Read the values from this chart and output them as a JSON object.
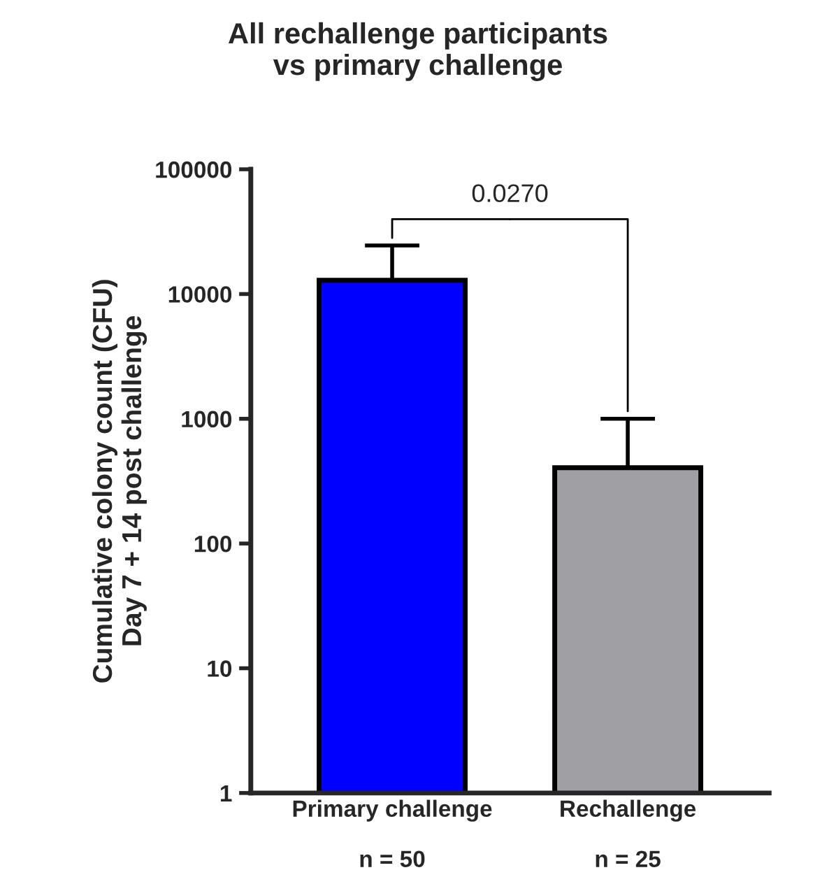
{
  "chart_data": {
    "type": "bar",
    "title": "All rechallenge participants\nvs primary challenge",
    "ylabel": "Cumulative colony count (CFU)\nDay 7 + 14 post challenge",
    "categories": [
      "Primary challenge\n\nn = 50",
      "Rechallenge\n\nn = 25"
    ],
    "values": [
      12900,
      405
    ],
    "colors": [
      "#0000ff",
      "#a0a0a4"
    ],
    "errors": [
      [
        12900,
        24500
      ],
      [
        405,
        1000
      ]
    ],
    "log": true,
    "ylim": [
      1,
      100000
    ],
    "yticks": [
      1,
      10,
      100,
      1000,
      10000,
      100000
    ],
    "grid": false,
    "annotations": [
      "0.0270"
    ]
  }
}
